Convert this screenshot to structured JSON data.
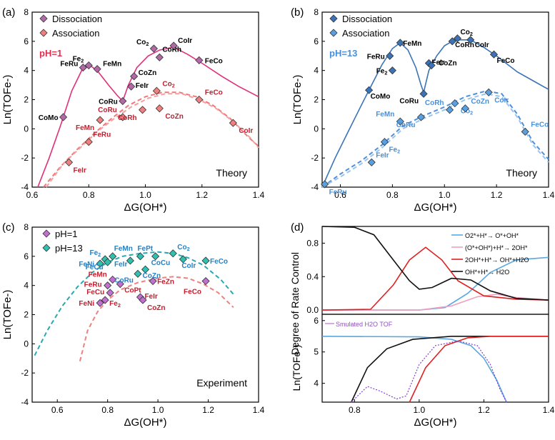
{
  "figure": {
    "panel_labels": [
      "(a)",
      "(b)",
      "(c)",
      "(d)"
    ],
    "colors": {
      "dissociation": "#b06aa8",
      "association": "#f08080",
      "dark_red": "#c0202f",
      "mag_curve": "#e0307a",
      "blue_dark": "#3a73b8",
      "blue_light": "#5aa0e0",
      "teal": "#30c0b0",
      "purple_sq": "#c070d0"
    }
  },
  "chart_data": [
    {
      "id": "a",
      "type": "scatter",
      "xlabel": "ΔG(OH*)",
      "ylabel": "Ln(TOFe-)",
      "xlim": [
        0.6,
        1.4
      ],
      "ylim": [
        -4,
        8
      ],
      "xticks": [
        "0.6",
        "0.8",
        "1.0",
        "1.2",
        "1.4"
      ],
      "yticks": [
        "-4",
        "-2",
        "0",
        "2",
        "4",
        "6",
        "8"
      ],
      "legend": [
        "Dissociation",
        "Association"
      ],
      "condition": "pH=1",
      "corner_text": "Theory",
      "series": [
        {
          "name": "Dissociation",
          "points": [
            {
              "label": "CoMo",
              "x": 0.71,
              "y": 0.8
            },
            {
              "label": "FeRu",
              "x": 0.78,
              "y": 4.2
            },
            {
              "label": "Fe2",
              "x": 0.8,
              "y": 4.35
            },
            {
              "label": "FeMn",
              "x": 0.83,
              "y": 4.1
            },
            {
              "label": "CoRu",
              "x": 0.92,
              "y": 1.9
            },
            {
              "label": "FeIr",
              "x": 0.95,
              "y": 2.9
            },
            {
              "label": "CoZn",
              "x": 0.96,
              "y": 3.6
            },
            {
              "label": "CoRh",
              "x": 1.05,
              "y": 4.9
            },
            {
              "label": "Co2",
              "x": 1.03,
              "y": 5.5
            },
            {
              "label": "CoIr",
              "x": 1.1,
              "y": 5.7
            },
            {
              "label": "FeCo",
              "x": 1.19,
              "y": 4.7
            }
          ]
        },
        {
          "name": "Association",
          "points": [
            {
              "label": "FeIr",
              "x": 0.73,
              "y": -2.3
            },
            {
              "label": "FeRu",
              "x": 0.8,
              "y": -0.9
            },
            {
              "label": "FeMn",
              "x": 0.84,
              "y": 0.6
            },
            {
              "label": "CoRu",
              "x": 0.92,
              "y": 0.8
            },
            {
              "label": "CoRh",
              "x": 0.99,
              "y": 1.3
            },
            {
              "label": "Co2",
              "x": 1.04,
              "y": 2.6
            },
            {
              "label": "CoZn",
              "x": 1.05,
              "y": 1.4
            },
            {
              "label": "FeCo",
              "x": 1.19,
              "y": 2.0
            },
            {
              "label": "CoIr",
              "x": 1.31,
              "y": 0.4
            }
          ]
        }
      ]
    },
    {
      "id": "b",
      "type": "scatter",
      "xlabel": "ΔG(OH*)",
      "ylabel": "Ln(TOFe-)",
      "xlim": [
        0.53,
        1.4
      ],
      "ylim": [
        -4,
        8
      ],
      "xticks": [
        "0.6",
        "0.8",
        "1.0",
        "1.2",
        "1.4"
      ],
      "yticks": [
        "-4",
        "-2",
        "0",
        "2",
        "4",
        "6",
        "8"
      ],
      "legend": [
        "Dissociation",
        "Association"
      ],
      "condition": "pH=13",
      "corner_text": "Theory",
      "series": [
        {
          "name": "Dissociation",
          "points": [
            {
              "label": "CoMo",
              "x": 0.71,
              "y": 2.65
            },
            {
              "label": "Fe2",
              "x": 0.8,
              "y": 4.0
            },
            {
              "label": "FeRu",
              "x": 0.79,
              "y": 5.0
            },
            {
              "label": "FeMn",
              "x": 0.83,
              "y": 5.9
            },
            {
              "label": "CoRu",
              "x": 0.92,
              "y": 2.4
            },
            {
              "label": "FeIr",
              "x": 0.94,
              "y": 4.5
            },
            {
              "label": "CoZn",
              "x": 0.95,
              "y": 4.35
            },
            {
              "label": "CoRh",
              "x": 1.03,
              "y": 6.0
            },
            {
              "label": "Co2",
              "x": 1.05,
              "y": 6.2
            },
            {
              "label": "CoIr",
              "x": 1.1,
              "y": 6.1
            },
            {
              "label": "FeCo",
              "x": 1.19,
              "y": 5.1
            }
          ]
        },
        {
          "name": "Association",
          "points": [
            {
              "label": "FeRu",
              "x": 0.54,
              "y": -3.8
            },
            {
              "label": "FeIr",
              "x": 0.72,
              "y": -2.3
            },
            {
              "label": "Fe2",
              "x": 0.77,
              "y": -0.9
            },
            {
              "label": "FeMn",
              "x": 0.83,
              "y": 0.5
            },
            {
              "label": "CoRu",
              "x": 0.91,
              "y": 0.8
            },
            {
              "label": "CoRh",
              "x": 1.02,
              "y": 1.3
            },
            {
              "label": "Co2",
              "x": 1.04,
              "y": 1.75
            },
            {
              "label": "CoZn",
              "x": 1.08,
              "y": 1.4
            },
            {
              "label": "CoIr",
              "x": 1.17,
              "y": 2.5
            },
            {
              "label": "FeCo",
              "x": 1.31,
              "y": -0.2
            }
          ]
        }
      ]
    },
    {
      "id": "c",
      "type": "scatter",
      "xlabel": "ΔG(OH*)",
      "ylabel": "Ln(TOFe-)",
      "xlim": [
        0.5,
        1.4
      ],
      "ylim": [
        -4,
        8
      ],
      "xticks": [
        "0.6",
        "0.8",
        "1.0",
        "1.2",
        "1.4"
      ],
      "yticks": [
        "-4",
        "-2",
        "0",
        "2",
        "4",
        "6",
        "8"
      ],
      "legend": [
        "pH=1",
        "pH=13"
      ],
      "corner_text": "Experiment",
      "series": [
        {
          "name": "pH=1",
          "points": [
            {
              "label": "FeNi",
              "x": 0.77,
              "y": 2.8
            },
            {
              "label": "Fe2",
              "x": 0.79,
              "y": 3.0
            },
            {
              "label": "FeCu",
              "x": 0.81,
              "y": 3.5
            },
            {
              "label": "FeRu",
              "x": 0.8,
              "y": 4.0
            },
            {
              "label": "FeMn",
              "x": 0.82,
              "y": 4.4
            },
            {
              "label": "CoPt",
              "x": 0.85,
              "y": 4.1
            },
            {
              "label": "FeIr",
              "x": 0.93,
              "y": 3.2
            },
            {
              "label": "CoZn",
              "x": 0.94,
              "y": 3.0
            },
            {
              "label": "FeZn",
              "x": 0.98,
              "y": 4.3
            },
            {
              "label": "FeCo",
              "x": 1.19,
              "y": 4.3
            }
          ]
        },
        {
          "name": "pH=13",
          "points": [
            {
              "label": "FeNi",
              "x": 0.77,
              "y": 5.5
            },
            {
              "label": "Fe2",
              "x": 0.79,
              "y": 5.8
            },
            {
              "label": "FeMn",
              "x": 0.82,
              "y": 6.0
            },
            {
              "label": "FeCu",
              "x": 0.8,
              "y": 5.6
            },
            {
              "label": "FeIr",
              "x": 0.89,
              "y": 5.7
            },
            {
              "label": "CoRu",
              "x": 0.92,
              "y": 4.8
            },
            {
              "label": "CoZn",
              "x": 0.95,
              "y": 5.1
            },
            {
              "label": "FePt",
              "x": 0.93,
              "y": 6.0
            },
            {
              "label": "CoCu",
              "x": 0.99,
              "y": 6.0
            },
            {
              "label": "Co2",
              "x": 1.06,
              "y": 6.2
            },
            {
              "label": "CoIr",
              "x": 1.1,
              "y": 5.8
            },
            {
              "label": "FeCo",
              "x": 1.19,
              "y": 5.7
            }
          ]
        }
      ]
    },
    {
      "id": "d-top",
      "type": "line",
      "ylabel": "Degree of Rate Control",
      "xlim": [
        0.7,
        1.4
      ],
      "ylim": [
        -0.05,
        1.0
      ],
      "yticks": [
        "0.0",
        "0.4",
        "0.8"
      ],
      "legend": [
        "O2*+H*→ O*+OH*",
        "(O*+OH*)+H*→ 2OH*",
        "2OH*+H*→ OH*+H2O",
        "OH*+H*→ H2O"
      ]
    },
    {
      "id": "d-bottom",
      "type": "line",
      "xlabel": "ΔG(OH*)",
      "ylabel": "Ln(TOFe-)",
      "xlim": [
        0.7,
        1.4
      ],
      "ylim": [
        3.4,
        6.2
      ],
      "xticks": [
        "0.8",
        "1.0",
        "1.2",
        "1.4"
      ],
      "yticks": [
        "4",
        "5",
        "6"
      ],
      "legend": [
        "Smulated H2O TOF"
      ]
    }
  ]
}
